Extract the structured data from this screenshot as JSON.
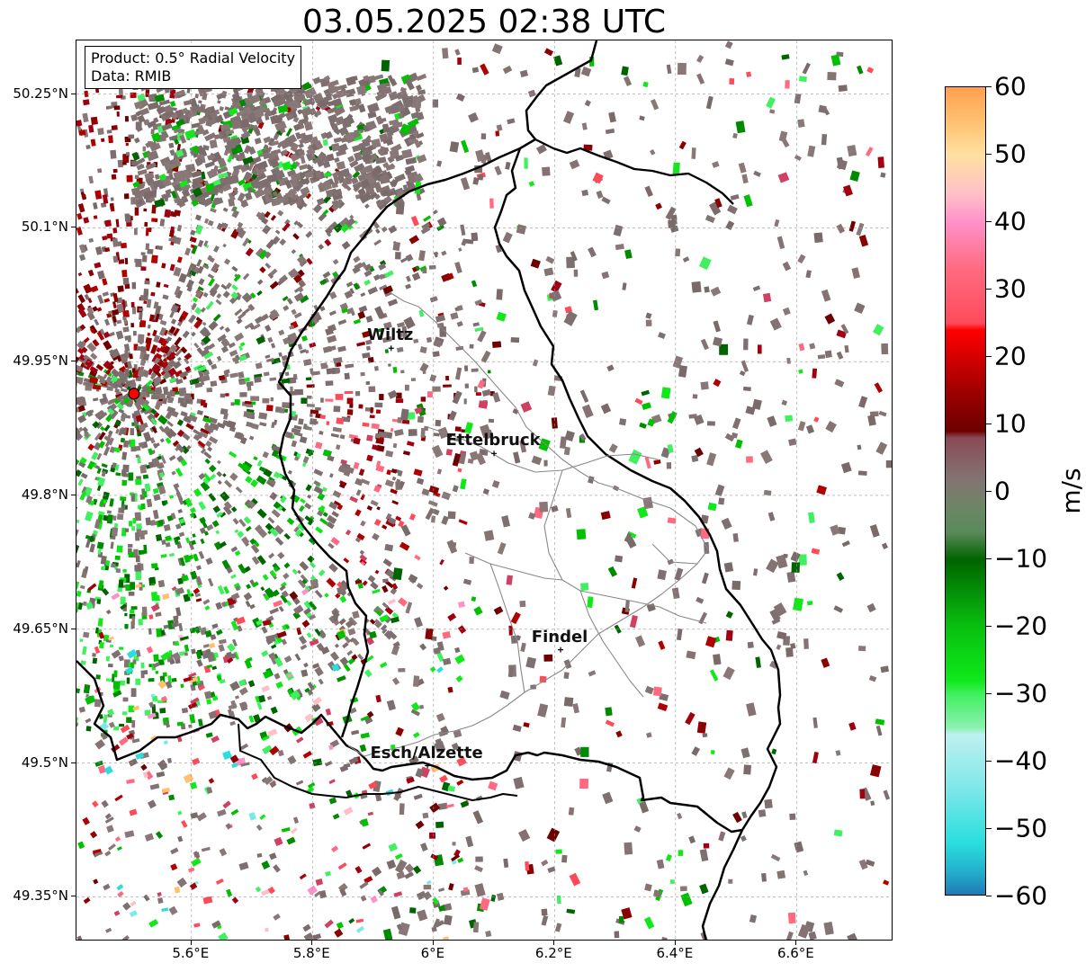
{
  "title": "03.05.2025 02:38 UTC",
  "info_box": {
    "product": "Product: 0.5° Radial Velocity",
    "data_source": "Data: RMIB"
  },
  "map": {
    "lon_range": [
      5.41,
      6.76
    ],
    "lat_range": [
      49.3,
      50.31
    ],
    "lon_ticks": [
      {
        "value": 5.6,
        "label": "5.6°E"
      },
      {
        "value": 5.8,
        "label": "5.8°E"
      },
      {
        "value": 6.0,
        "label": "6°E"
      },
      {
        "value": 6.2,
        "label": "6.2°E"
      },
      {
        "value": 6.4,
        "label": "6.4°E"
      },
      {
        "value": 6.6,
        "label": "6.6°E"
      }
    ],
    "lat_ticks": [
      {
        "value": 50.25,
        "label": "50.25°N"
      },
      {
        "value": 50.1,
        "label": "50.1°N"
      },
      {
        "value": 49.95,
        "label": "49.95°N"
      },
      {
        "value": 49.8,
        "label": "49.8°N"
      },
      {
        "value": 49.65,
        "label": "49.65°N"
      },
      {
        "value": 49.5,
        "label": "49.5°N"
      },
      {
        "value": 49.35,
        "label": "49.35°N"
      }
    ],
    "radar_site": {
      "lon": 5.505,
      "lat": 49.914,
      "color": "#ff0000"
    },
    "cities": [
      {
        "name": "Wiltz",
        "lon": 5.93,
        "lat": 49.965
      },
      {
        "name": "Ettelbruck",
        "lon": 6.1,
        "lat": 49.847
      },
      {
        "name": "Findel",
        "lon": 6.21,
        "lat": 49.627
      },
      {
        "name": "Esch/Alzette",
        "lon": 5.99,
        "lat": 49.497
      }
    ],
    "grid": true
  },
  "colorbar": {
    "unit": "m/s",
    "range": [
      -60,
      60
    ],
    "ticks": [
      {
        "value": 60,
        "label": "60"
      },
      {
        "value": 50,
        "label": "50"
      },
      {
        "value": 40,
        "label": "40"
      },
      {
        "value": 30,
        "label": "30"
      },
      {
        "value": 20,
        "label": "20"
      },
      {
        "value": 10,
        "label": "10"
      },
      {
        "value": 0,
        "label": "0"
      },
      {
        "value": -10,
        "label": "−10"
      },
      {
        "value": -20,
        "label": "−20"
      },
      {
        "value": -30,
        "label": "−30"
      },
      {
        "value": -40,
        "label": "−40"
      },
      {
        "value": -50,
        "label": "−50"
      },
      {
        "value": -60,
        "label": "−60"
      }
    ],
    "color_stops": [
      {
        "value": -60,
        "color": "#1f77b4"
      },
      {
        "value": -56,
        "color": "#22b3cf"
      },
      {
        "value": -52,
        "color": "#2adede"
      },
      {
        "value": -44,
        "color": "#7ee7e8"
      },
      {
        "value": -36,
        "color": "#bff0f0"
      },
      {
        "value": -35,
        "color": "#8cf0b0"
      },
      {
        "value": -30,
        "color": "#40f060"
      },
      {
        "value": -28,
        "color": "#10e81a"
      },
      {
        "value": -20,
        "color": "#08c010"
      },
      {
        "value": -10,
        "color": "#006400"
      },
      {
        "value": -6,
        "color": "#5a8a5a"
      },
      {
        "value": -2,
        "color": "#6e8566"
      },
      {
        "value": 2,
        "color": "#857272"
      },
      {
        "value": 8,
        "color": "#8a4a55"
      },
      {
        "value": 9,
        "color": "#6e0000"
      },
      {
        "value": 15,
        "color": "#a00000"
      },
      {
        "value": 24,
        "color": "#ff0000"
      },
      {
        "value": 25,
        "color": "#ff4a5a"
      },
      {
        "value": 33,
        "color": "#ff6a80"
      },
      {
        "value": 40,
        "color": "#ff90c8"
      },
      {
        "value": 44,
        "color": "#ffbfc8"
      },
      {
        "value": 50,
        "color": "#ffe0a0"
      },
      {
        "value": 55,
        "color": "#ffc070"
      },
      {
        "value": 60,
        "color": "#ffa050"
      }
    ]
  }
}
